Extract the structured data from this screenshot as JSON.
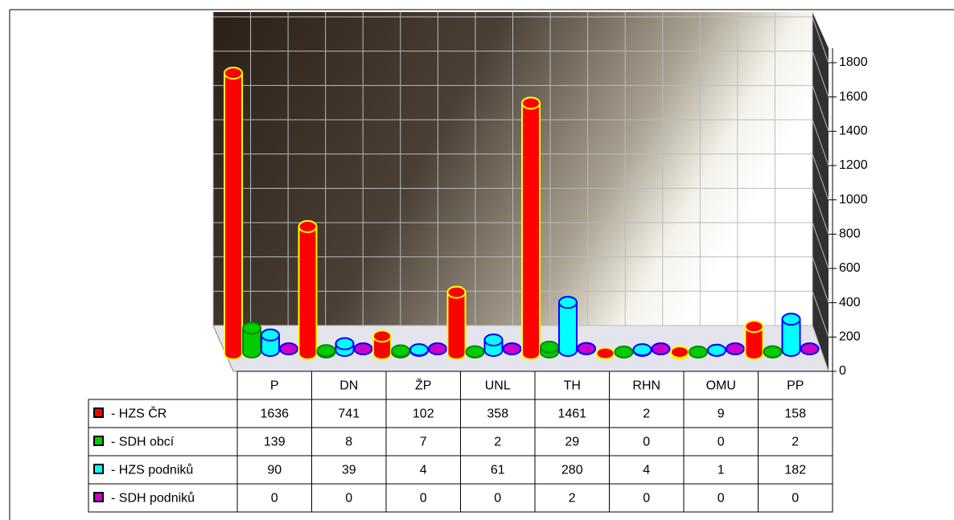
{
  "chart_data": {
    "type": "bar",
    "categories": [
      "P",
      "DN",
      "ŽP",
      "UNL",
      "TH",
      "RHN",
      "OMU",
      "PP"
    ],
    "series": [
      {
        "name": "- HZS ČR",
        "color": "#ff0000",
        "values": [
          1636,
          741,
          102,
          358,
          1461,
          2,
          9,
          158
        ]
      },
      {
        "name": "- SDH obcí",
        "color": "#00cc00",
        "values": [
          139,
          8,
          7,
          2,
          29,
          0,
          0,
          2
        ]
      },
      {
        "name": "- HZS podniků",
        "color": "#00ffff",
        "values": [
          90,
          39,
          4,
          61,
          280,
          4,
          1,
          182
        ]
      },
      {
        "name": "- SDH podniků",
        "color": "#cc00cc",
        "values": [
          0,
          0,
          0,
          0,
          2,
          0,
          0,
          0
        ]
      }
    ],
    "ylim": [
      0,
      1800
    ],
    "yticks": [
      0,
      200,
      400,
      600,
      800,
      1000,
      1200,
      1400,
      1600,
      1800
    ],
    "grid": true
  }
}
